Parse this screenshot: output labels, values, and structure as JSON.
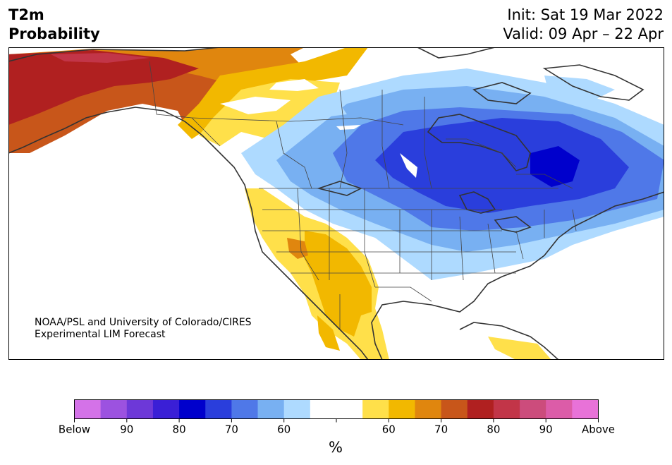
{
  "title": {
    "line1": "T2m",
    "line2": "Probability",
    "init": "Init: Sat 19 Mar 2022",
    "valid": "Valid: 09 Apr – 22 Apr"
  },
  "credit": {
    "line1": "NOAA/PSL and University of Colorado/CIRES",
    "line2": "Experimental LIM Forecast"
  },
  "colorbar": {
    "unit": "%",
    "colors": [
      "#d472e8",
      "#9c52e0",
      "#6d38d8",
      "#3a1fd6",
      "#0000cc",
      "#2a3edc",
      "#4f78e8",
      "#78b0f2",
      "#aedaff",
      "#ffffff",
      "#ffffff",
      "#ffe04a",
      "#f2b800",
      "#e0860e",
      "#c8561a",
      "#b02020",
      "#c23548",
      "#cc4c7c",
      "#dc5ca8",
      "#e872d8"
    ],
    "tick_labels": [
      "Below",
      "90",
      "80",
      "70",
      "60",
      "",
      "60",
      "70",
      "80",
      "90",
      "Above"
    ]
  },
  "map_colors": {
    "ocean": "#ffffff",
    "land_neutral": "#ffffff",
    "coast": "#333333",
    "border": "#444444"
  }
}
